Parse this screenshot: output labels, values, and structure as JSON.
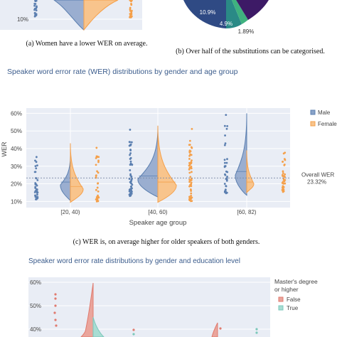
{
  "captions": {
    "a": "(a) Women have a lower WER on average.",
    "b": "(b) Over half of the substitutions can be categorised.",
    "c": "(c) WER is, on average higher for older speakers of both genders."
  },
  "colors": {
    "male": "#5b7fb0",
    "female": "#f5a04a",
    "false": "#e07a6e",
    "true": "#7cc8bb",
    "plot_bg": "#e9edf5",
    "title": "#3b5c8c"
  },
  "chart_data": [
    {
      "type": "violin",
      "panel": "a",
      "yticks": [
        "10%"
      ],
      "series": [
        {
          "name": "Male",
          "color": "#5b7fb0"
        },
        {
          "name": "Female",
          "color": "#f5a04a"
        }
      ]
    },
    {
      "type": "pie",
      "panel": "b",
      "slice_labels": [
        "10.9%",
        "4.9%",
        "1.89%"
      ]
    },
    {
      "type": "violin",
      "panel": "c",
      "title": "Speaker word error rate (WER) distributions by gender and age group",
      "xlabel": "Speaker age group",
      "ylabel": "WER",
      "categories": [
        "[20, 40)",
        "[40, 60)",
        "[60, 82)"
      ],
      "yticks": [
        "10%",
        "20%",
        "30%",
        "40%",
        "50%",
        "60%"
      ],
      "ylim": [
        0.065,
        0.63
      ],
      "reference": {
        "label": "Overall WER",
        "value_label": "23.32%",
        "value": 0.2332
      },
      "legend": {
        "position": "top-right",
        "entries": [
          "Male",
          "Female"
        ]
      },
      "series": [
        {
          "name": "Male",
          "color": "#5b7fb0",
          "medians": [
            0.21,
            0.245,
            0.27
          ],
          "max": [
            0.36,
            0.52,
            0.6
          ],
          "min": [
            0.105,
            0.125,
            0.135
          ]
        },
        {
          "name": "Female",
          "color": "#f5a04a",
          "medians": [
            0.185,
            0.21,
            0.21
          ],
          "max": [
            0.43,
            0.53,
            0.39
          ],
          "min": [
            0.095,
            0.095,
            0.15
          ]
        }
      ]
    },
    {
      "type": "violin",
      "panel": "d",
      "title": "Speaker word error rate distributions by gender and education level",
      "yticks": [
        "40%",
        "50%",
        "60%"
      ],
      "legend": {
        "title_line1": "Master's degree",
        "title_line2": "or higher",
        "entries": [
          "False",
          "True"
        ]
      },
      "series": [
        {
          "name": "False",
          "color": "#e07a6e"
        },
        {
          "name": "True",
          "color": "#7cc8bb"
        }
      ]
    }
  ]
}
